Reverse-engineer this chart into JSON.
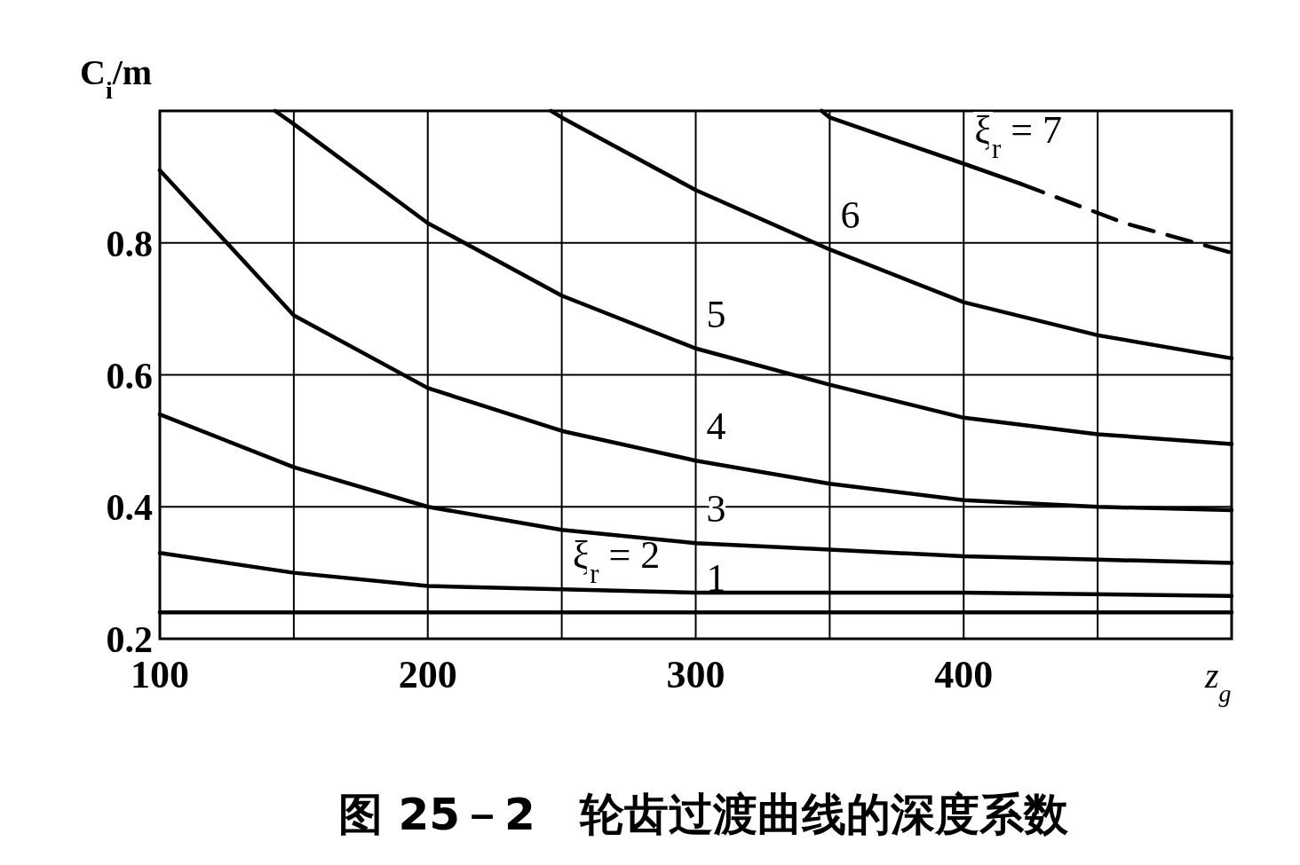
{
  "chart_data": {
    "type": "line",
    "title": "图 25－2　轮齿过渡曲线的深度系数",
    "xlabel": "z$_{g}$",
    "ylabel": "C$_{i}$/m",
    "xlim": [
      100,
      500
    ],
    "ylim": [
      0.2,
      1.0
    ],
    "xticks": [
      100,
      {
        "value": 150,
        "label": null
      },
      200,
      {
        "value": 250,
        "label": null
      },
      300,
      {
        "value": 350,
        "label": null
      },
      400,
      {
        "value": 450,
        "label": null
      },
      {
        "value": 500,
        "label": null
      }
    ],
    "yticks": [
      0.2,
      0.4,
      0.6,
      0.8
    ],
    "grid": true,
    "line_style": "solid",
    "series": [
      {
        "name": "1",
        "color": "#000000",
        "x": [
          100,
          200,
          300,
          400,
          500
        ],
        "values": [
          0.24,
          0.24,
          0.24,
          0.24,
          0.24
        ]
      },
      {
        "name": "ξ$_{r}$ = 2",
        "color": "#000000",
        "x": [
          100,
          150,
          200,
          250,
          300,
          400,
          500
        ],
        "values": [
          0.33,
          0.3,
          0.28,
          0.275,
          0.27,
          0.27,
          0.265
        ]
      },
      {
        "name": "3",
        "color": "#000000",
        "x": [
          100,
          150,
          200,
          250,
          300,
          350,
          400,
          450,
          500
        ],
        "values": [
          0.54,
          0.46,
          0.4,
          0.365,
          0.345,
          0.335,
          0.325,
          0.32,
          0.315
        ]
      },
      {
        "name": "4",
        "color": "#000000",
        "x": [
          100,
          150,
          200,
          250,
          300,
          350,
          400,
          450,
          500
        ],
        "values": [
          0.91,
          0.69,
          0.58,
          0.515,
          0.47,
          0.435,
          0.41,
          0.4,
          0.395
        ]
      },
      {
        "name": "5",
        "color": "#000000",
        "x": [
          143,
          150,
          200,
          250,
          300,
          350,
          400,
          450,
          500
        ],
        "values": [
          1.0,
          0.98,
          0.83,
          0.72,
          0.64,
          0.585,
          0.535,
          0.51,
          0.495
        ]
      },
      {
        "name": "6",
        "color": "#000000",
        "x": [
          246,
          250,
          300,
          350,
          400,
          450,
          500
        ],
        "values": [
          1.0,
          0.99,
          0.88,
          0.79,
          0.71,
          0.66,
          0.625
        ]
      },
      {
        "name": "ξ$_{r}$ = 7",
        "color": "#000000",
        "x": [
          347,
          350,
          400,
          421
        ],
        "values": [
          1.0,
          0.99,
          0.92,
          0.89
        ]
      },
      {
        "color": "#000000",
        "line_style": "dashed",
        "x": [
          421,
          460,
          500
        ],
        "values": [
          0.89,
          0.83,
          0.785
        ]
      }
    ]
  }
}
